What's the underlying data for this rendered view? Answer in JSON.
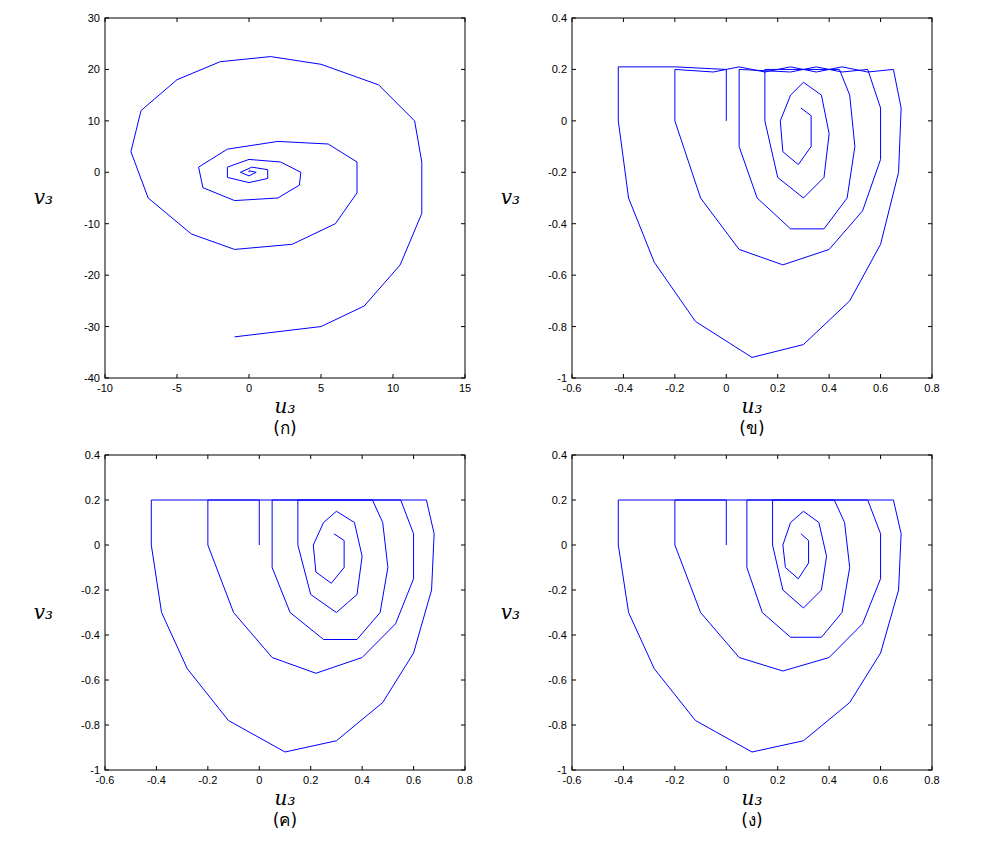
{
  "chart_data": [
    {
      "type": "line",
      "title": "(ก)",
      "xlabel": "u₃",
      "ylabel": "v₃",
      "xlim": [
        -10,
        15
      ],
      "xticks": [
        -10,
        -5,
        0,
        5,
        10,
        15
      ],
      "ylim": [
        -40,
        30
      ],
      "yticks": [
        -40,
        -30,
        -20,
        -10,
        0,
        10,
        20,
        30
      ],
      "series": [
        {
          "color": "#0000ff",
          "x": [
            -1,
            5,
            8,
            10.5,
            12,
            12,
            11.5,
            9,
            5,
            1.5,
            -2,
            -5,
            -7.5,
            -8.2,
            -7,
            -4,
            -1,
            3,
            6,
            7.5,
            7.5,
            5.5,
            2,
            -1.5,
            -3.5,
            -3.2,
            -1,
            2,
            3.5,
            3.6,
            2.2,
            0,
            -1.5,
            -1.5,
            0,
            1.3,
            1.3,
            0.2,
            -0.6,
            0,
            0.5,
            0,
            0
          ],
          "values": [
            -32,
            -30,
            -26,
            -18,
            -8,
            2,
            10,
            17,
            21,
            22.5,
            21.5,
            18,
            12,
            4,
            -5,
            -12,
            -15,
            -14,
            -10,
            -4,
            2,
            5.5,
            6,
            4.5,
            1,
            -3,
            -5.5,
            -5,
            -2.5,
            0,
            2,
            2.5,
            1,
            -1,
            -2,
            -1.2,
            0.5,
            1,
            0,
            -0.7,
            0,
            0.3,
            0
          ]
        }
      ]
    },
    {
      "type": "line",
      "title": "(ข)",
      "xlabel": "u₃",
      "ylabel": "v₃",
      "xlim": [
        -0.6,
        0.8
      ],
      "xticks": [
        -0.6,
        -0.4,
        -0.2,
        0,
        0.2,
        0.4,
        0.6,
        0.8
      ],
      "ylim": [
        -1,
        0.4
      ],
      "yticks": [
        -1,
        -0.8,
        -0.6,
        -0.4,
        -0.2,
        0,
        0.2,
        0.4
      ],
      "series": [
        {
          "color": "#0000ff",
          "x": [
            0,
            0,
            -0.2,
            -0.42,
            -0.42,
            -0.38,
            -0.28,
            -0.12,
            0.1,
            0.3,
            0.48,
            0.6,
            0.67,
            0.68,
            0.65,
            0.55,
            0.45,
            0.35,
            0.25,
            0.15,
            0.05,
            -0.05,
            -0.2,
            -0.2,
            -0.1,
            0.05,
            0.22,
            0.4,
            0.53,
            0.6,
            0.6,
            0.55,
            0.45,
            0.35,
            0.25,
            0.05,
            0.05,
            0.12,
            0.25,
            0.38,
            0.47,
            0.5,
            0.48,
            0.44,
            0.15,
            0.15,
            0.2,
            0.3,
            0.38,
            0.4,
            0.37,
            0.3,
            0.25,
            0.21,
            0.22,
            0.28,
            0.33,
            0.33,
            0.29
          ],
          "values": [
            0,
            0.2,
            0.21,
            0.21,
            0,
            -0.3,
            -0.55,
            -0.78,
            -0.92,
            -0.87,
            -0.7,
            -0.48,
            -0.2,
            0.05,
            0.2,
            0.19,
            0.21,
            0.19,
            0.21,
            0.19,
            0.21,
            0.19,
            0.2,
            0,
            -0.3,
            -0.5,
            -0.56,
            -0.5,
            -0.35,
            -0.15,
            0.05,
            0.2,
            0.19,
            0.21,
            0.19,
            0.2,
            -0.1,
            -0.3,
            -0.42,
            -0.42,
            -0.3,
            -0.1,
            0.1,
            0.2,
            0.2,
            0,
            -0.22,
            -0.3,
            -0.22,
            -0.05,
            0.1,
            0.15,
            0.1,
            0,
            -0.12,
            -0.17,
            -0.1,
            0.02,
            0.05
          ]
        }
      ]
    },
    {
      "type": "line",
      "title": "(ค)",
      "xlabel": "u₃",
      "ylabel": "v₃",
      "xlim": [
        -0.6,
        0.8
      ],
      "xticks": [
        -0.6,
        -0.4,
        -0.2,
        0,
        0.2,
        0.4,
        0.6,
        0.8
      ],
      "ylim": [
        -1,
        0.4
      ],
      "yticks": [
        -1,
        -0.8,
        -0.6,
        -0.4,
        -0.2,
        0,
        0.2,
        0.4
      ],
      "series": [
        {
          "color": "#0000ff",
          "x": [
            0,
            0,
            -0.42,
            -0.42,
            -0.38,
            -0.28,
            -0.12,
            0.1,
            0.3,
            0.48,
            0.6,
            0.67,
            0.68,
            0.65,
            -0.2,
            -0.2,
            -0.1,
            0.05,
            0.22,
            0.4,
            0.53,
            0.6,
            0.6,
            0.55,
            0.05,
            0.05,
            0.12,
            0.25,
            0.38,
            0.47,
            0.5,
            0.48,
            0.44,
            0.15,
            0.15,
            0.2,
            0.3,
            0.38,
            0.4,
            0.37,
            0.3,
            0.25,
            0.21,
            0.22,
            0.28,
            0.33,
            0.33,
            0.29
          ],
          "values": [
            0,
            0.2,
            0.2,
            0,
            -0.3,
            -0.55,
            -0.78,
            -0.92,
            -0.87,
            -0.7,
            -0.48,
            -0.2,
            0.05,
            0.2,
            0.2,
            0,
            -0.3,
            -0.5,
            -0.57,
            -0.5,
            -0.35,
            -0.15,
            0.05,
            0.2,
            0.2,
            -0.1,
            -0.3,
            -0.42,
            -0.42,
            -0.3,
            -0.1,
            0.1,
            0.2,
            0.2,
            0,
            -0.22,
            -0.3,
            -0.22,
            -0.05,
            0.1,
            0.15,
            0.1,
            0,
            -0.12,
            -0.17,
            -0.1,
            0.02,
            0.05
          ]
        }
      ]
    },
    {
      "type": "line",
      "title": "(ง)",
      "xlabel": "u₃",
      "ylabel": "v₃",
      "xlim": [
        -0.6,
        0.8
      ],
      "xticks": [
        -0.6,
        -0.4,
        -0.2,
        0,
        0.2,
        0.4,
        0.6,
        0.8
      ],
      "ylim": [
        -1,
        0.4
      ],
      "yticks": [
        -1,
        -0.8,
        -0.6,
        -0.4,
        -0.2,
        0,
        0.2,
        0.4
      ],
      "series": [
        {
          "color": "#0000ff",
          "x": [
            0,
            0,
            -0.42,
            -0.42,
            -0.38,
            -0.28,
            -0.12,
            0.1,
            0.3,
            0.48,
            0.6,
            0.67,
            0.68,
            0.65,
            -0.2,
            -0.2,
            -0.1,
            0.05,
            0.22,
            0.4,
            0.53,
            0.6,
            0.6,
            0.55,
            0.08,
            0.08,
            0.14,
            0.25,
            0.37,
            0.45,
            0.48,
            0.46,
            0.42,
            0.18,
            0.18,
            0.22,
            0.3,
            0.37,
            0.39,
            0.36,
            0.3,
            0.25,
            0.22,
            0.23,
            0.28,
            0.32,
            0.32,
            0.29
          ],
          "values": [
            0,
            0.2,
            0.2,
            0,
            -0.3,
            -0.55,
            -0.78,
            -0.92,
            -0.87,
            -0.7,
            -0.48,
            -0.2,
            0.05,
            0.2,
            0.2,
            0,
            -0.3,
            -0.5,
            -0.56,
            -0.5,
            -0.35,
            -0.15,
            0.05,
            0.2,
            0.2,
            -0.1,
            -0.3,
            -0.41,
            -0.41,
            -0.3,
            -0.1,
            0.1,
            0.2,
            0.2,
            0,
            -0.2,
            -0.28,
            -0.2,
            -0.05,
            0.1,
            0.15,
            0.1,
            0,
            -0.1,
            -0.15,
            -0.08,
            0.02,
            0.05
          ]
        }
      ]
    }
  ]
}
